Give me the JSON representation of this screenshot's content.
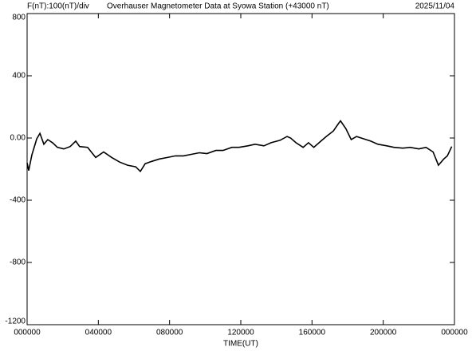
{
  "chart_data": {
    "type": "line",
    "scale_label": "F(nT):100(nT)/div",
    "title": "Overhauser Magnetometer Data at Syowa Station (+43000 nT)",
    "date": "2025/11/04",
    "x_label": "TIME(UT)",
    "xlim": [
      0,
      24
    ],
    "xticks": [
      {
        "value": 0,
        "label": "000000"
      },
      {
        "value": 4,
        "label": "040000"
      },
      {
        "value": 8,
        "label": "080000"
      },
      {
        "value": 12,
        "label": "120000"
      },
      {
        "value": 16,
        "label": "160000"
      },
      {
        "value": 20,
        "label": "200000"
      },
      {
        "value": 24,
        "label": "000000"
      }
    ],
    "ylim": [
      -1200,
      800
    ],
    "yticks": [
      800,
      400,
      {
        "value": 0,
        "label": "0.00"
      },
      -400,
      -800,
      -1200
    ],
    "series": [
      {
        "color": "#000000",
        "x": [
          0,
          0.09,
          0.27,
          0.54,
          0.72,
          0.94,
          1.16,
          1.43,
          1.7,
          2.06,
          2.42,
          2.73,
          2.95,
          3.4,
          3.85,
          4.3,
          4.75,
          5.2,
          5.64,
          6.1,
          6.36,
          6.63,
          7,
          7.43,
          7.88,
          8.33,
          8.78,
          9.22,
          9.67,
          10.1,
          10.6,
          11,
          11.5,
          11.9,
          12.4,
          12.8,
          13.3,
          13.7,
          14.2,
          14.6,
          14.8,
          15.1,
          15.5,
          15.8,
          16.1,
          16.5,
          16.8,
          17.2,
          17.5,
          17.6,
          17.9,
          18.2,
          18.5,
          18.9,
          19.3,
          19.7,
          20.2,
          20.6,
          21.1,
          21.5,
          22,
          22.4,
          22.8,
          23.1,
          23.4,
          23.6,
          23.85
        ],
        "values": [
          -160,
          -210,
          -108,
          -5,
          30,
          -40,
          -10,
          -30,
          -60,
          -70,
          -55,
          -20,
          -55,
          -60,
          -125,
          -90,
          -125,
          -155,
          -175,
          -185,
          -215,
          -165,
          -150,
          -135,
          -125,
          -115,
          -115,
          -105,
          -95,
          -100,
          -80,
          -80,
          -60,
          -60,
          -50,
          -40,
          -50,
          -30,
          -15,
          10,
          0,
          -30,
          -60,
          -30,
          -60,
          -20,
          10,
          45,
          95,
          110,
          60,
          -10,
          10,
          -5,
          -20,
          -40,
          -50,
          -60,
          -65,
          -60,
          -70,
          -60,
          -90,
          -175,
          -135,
          -115,
          -55
        ]
      }
    ]
  }
}
